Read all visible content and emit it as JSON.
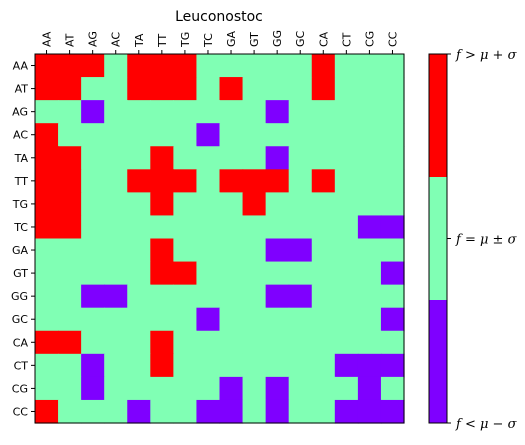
{
  "chart_data": {
    "type": "heatmap",
    "title": "Leuconostoc",
    "x_labels": [
      "AA",
      "AT",
      "AG",
      "AC",
      "TA",
      "TT",
      "TG",
      "TC",
      "GA",
      "GT",
      "GG",
      "GC",
      "CA",
      "CT",
      "CG",
      "CC"
    ],
    "y_labels": [
      "AA",
      "AT",
      "AG",
      "AC",
      "TA",
      "TT",
      "TG",
      "TC",
      "GA",
      "GT",
      "GG",
      "GC",
      "CA",
      "CT",
      "CG",
      "CC"
    ],
    "x_ticks_position": "top",
    "value_encoding": {
      "-1": "f < μ − σ",
      "0": "f = μ ± σ",
      "1": "f > μ + σ"
    },
    "matrix": [
      [
        1,
        1,
        1,
        0,
        1,
        1,
        1,
        0,
        0,
        0,
        0,
        0,
        1,
        0,
        0,
        0
      ],
      [
        1,
        1,
        0,
        0,
        1,
        1,
        1,
        0,
        1,
        0,
        0,
        0,
        1,
        0,
        0,
        0
      ],
      [
        0,
        0,
        -1,
        0,
        0,
        0,
        0,
        0,
        0,
        0,
        -1,
        0,
        0,
        0,
        0,
        0
      ],
      [
        1,
        0,
        0,
        0,
        0,
        0,
        0,
        -1,
        0,
        0,
        0,
        0,
        0,
        0,
        0,
        0
      ],
      [
        1,
        1,
        0,
        0,
        0,
        1,
        0,
        0,
        0,
        0,
        -1,
        0,
        0,
        0,
        0,
        0
      ],
      [
        1,
        1,
        0,
        0,
        1,
        1,
        1,
        0,
        1,
        1,
        1,
        0,
        1,
        0,
        0,
        0
      ],
      [
        1,
        1,
        0,
        0,
        0,
        1,
        0,
        0,
        0,
        1,
        0,
        0,
        0,
        0,
        0,
        0
      ],
      [
        1,
        1,
        0,
        0,
        0,
        0,
        0,
        0,
        0,
        0,
        0,
        0,
        0,
        0,
        -1,
        -1
      ],
      [
        0,
        0,
        0,
        0,
        0,
        1,
        0,
        0,
        0,
        0,
        -1,
        -1,
        0,
        0,
        0,
        0
      ],
      [
        0,
        0,
        0,
        0,
        0,
        1,
        1,
        0,
        0,
        0,
        0,
        0,
        0,
        0,
        0,
        -1
      ],
      [
        0,
        0,
        -1,
        -1,
        0,
        0,
        0,
        0,
        0,
        0,
        -1,
        -1,
        0,
        0,
        0,
        0
      ],
      [
        0,
        0,
        0,
        0,
        0,
        0,
        0,
        -1,
        0,
        0,
        0,
        0,
        0,
        0,
        0,
        -1
      ],
      [
        1,
        1,
        0,
        0,
        0,
        1,
        0,
        0,
        0,
        0,
        0,
        0,
        0,
        0,
        0,
        0
      ],
      [
        0,
        0,
        -1,
        0,
        0,
        1,
        0,
        0,
        0,
        0,
        0,
        0,
        0,
        -1,
        -1,
        -1
      ],
      [
        0,
        0,
        -1,
        0,
        0,
        0,
        0,
        0,
        -1,
        0,
        -1,
        0,
        0,
        0,
        -1,
        0
      ],
      [
        1,
        0,
        0,
        0,
        -1,
        0,
        0,
        -1,
        -1,
        0,
        -1,
        0,
        0,
        -1,
        -1,
        -1
      ]
    ],
    "colors": {
      "low": "#7f00ff",
      "mid": "#80ffb4",
      "high": "#ff0000"
    },
    "colorbar": {
      "labels": [
        "f > μ + σ",
        "f = μ ± σ",
        "f < μ − σ"
      ],
      "placement": "right"
    }
  }
}
